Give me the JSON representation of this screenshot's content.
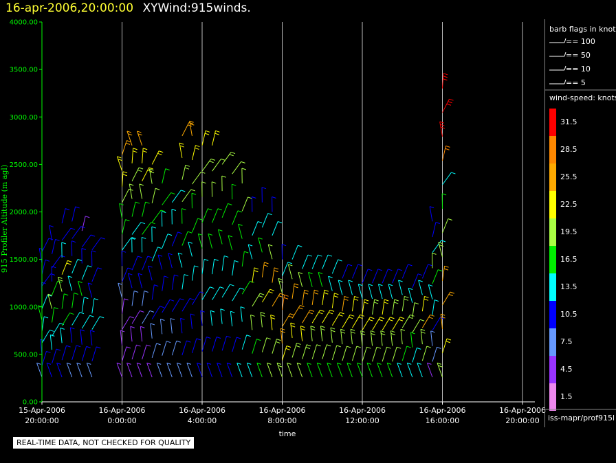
{
  "title": {
    "timestamp": "16-apr-2006,20:00:00",
    "dataset": "XYWind:915winds."
  },
  "quality_notice": "REAL-TIME DATA, NOT CHECKED FOR QUALITY",
  "chart_data": {
    "type": "scatter",
    "plot_kind": "wind-barb time-height plot",
    "ylabel": "915 Profiler Altitude (m agl)",
    "xlabel": "time",
    "ylim": [
      0,
      4000
    ],
    "y_ticks": [
      "4000.00",
      "3500.00",
      "3000.00",
      "2500.00",
      "2000.00",
      "1500.00",
      "1000.00",
      "500.00",
      "0.00"
    ],
    "x_ticks": [
      {
        "date": "15-Apr-2006",
        "time": "20:00:00"
      },
      {
        "date": "16-Apr-2006",
        "time": "0:00:00"
      },
      {
        "date": "16-Apr-2006",
        "time": "4:00:00"
      },
      {
        "date": "16-Apr-2006",
        "time": "8:00:00"
      },
      {
        "date": "16-Apr-2006",
        "time": "12:00:00"
      },
      {
        "date": "16-Apr-2006",
        "time": "16:00:00"
      },
      {
        "date": "16-Apr-2006",
        "time": "20:00:00"
      }
    ],
    "grid": "vertical lines at each time tick",
    "barb_legend": {
      "title": "barb flags in knots",
      "items": [
        "== 100",
        "== 50",
        "== 10",
        "== 5"
      ]
    },
    "color_scale": {
      "title": "wind-speed: knots",
      "levels": [
        {
          "label": "31.5",
          "color": "#ff0000"
        },
        {
          "label": "28.5",
          "color": "#ff8800"
        },
        {
          "label": "25.5",
          "color": "#ffaa00"
        },
        {
          "label": "22.5",
          "color": "#ffff00"
        },
        {
          "label": "19.5",
          "color": "#aaff44"
        },
        {
          "label": "16.5",
          "color": "#00ee00"
        },
        {
          "label": "13.5",
          "color": "#00ffff"
        },
        {
          "label": "10.5",
          "color": "#0000ff"
        },
        {
          "label": "7.5",
          "color": "#6699ff"
        },
        {
          "label": "4.5",
          "color": "#9933ff"
        },
        {
          "label": "1.5",
          "color": "#ee88ee"
        }
      ]
    },
    "source": "iss-mapr/prof915l",
    "profiles": [
      {
        "hour": 0.0,
        "top": 1580,
        "s": [
          8,
          9,
          11,
          12,
          14,
          15,
          12,
          11,
          10,
          10,
          10,
          9
        ]
      },
      {
        "hour": 0.5,
        "top": 1700,
        "s": [
          9,
          10,
          12,
          14,
          16,
          18,
          15,
          11,
          10,
          10,
          10
        ]
      },
      {
        "hour": 1.0,
        "top": 1880,
        "s": [
          10,
          11,
          13,
          15,
          17,
          20,
          23,
          12,
          11,
          10
        ]
      },
      {
        "hour": 1.5,
        "top": 1900,
        "s": [
          8,
          9,
          11,
          13,
          15,
          14,
          12,
          10,
          10,
          10
        ]
      },
      {
        "hour": 2.0,
        "top": 1800,
        "s": [
          8,
          9,
          10,
          12,
          14,
          15,
          12,
          11,
          10,
          5
        ]
      },
      {
        "hour": 2.5,
        "top": 1600,
        "s": [
          8,
          9,
          10,
          12,
          14,
          11,
          10,
          10,
          10
        ]
      },
      {
        "hour": 4.0,
        "top": 2600,
        "s": [
          4,
          5,
          4,
          3,
          5,
          8,
          10,
          11,
          13,
          15,
          17,
          19,
          21,
          23,
          25
        ]
      },
      {
        "hour": 4.5,
        "top": 2700,
        "s": [
          4,
          4,
          3,
          4,
          6,
          9,
          10,
          12,
          14,
          16,
          18,
          20,
          22,
          25
        ]
      },
      {
        "hour": 5.0,
        "top": 2700,
        "s": [
          3,
          4,
          5,
          6,
          8,
          10,
          11,
          13,
          15,
          17,
          19,
          21,
          23,
          26
        ]
      },
      {
        "hour": 5.5,
        "top": 2500,
        "s": [
          5,
          6,
          7,
          9,
          10,
          11,
          12,
          14,
          16,
          18,
          20,
          22
        ]
      },
      {
        "hour": 6.0,
        "top": 2300,
        "s": [
          6,
          7,
          8,
          9,
          10,
          11,
          12,
          13,
          15,
          17
        ]
      },
      {
        "hour": 6.5,
        "top": 2100,
        "s": [
          6,
          7,
          8,
          9,
          10,
          10,
          11,
          12,
          14
        ]
      },
      {
        "hour": 7.0,
        "top": 2800,
        "s": [
          8,
          9,
          10,
          11,
          12,
          13,
          15,
          16,
          18,
          20,
          22,
          24
        ]
      },
      {
        "hour": 7.5,
        "top": 2800,
        "s": [
          8,
          9,
          10,
          11,
          12,
          14,
          15,
          17,
          19,
          21,
          24
        ]
      },
      {
        "hour": 8.0,
        "top": 2700,
        "s": [
          9,
          10,
          11,
          12,
          13,
          15,
          16,
          18,
          20,
          22
        ]
      },
      {
        "hour": 8.5,
        "top": 2700,
        "s": [
          10,
          11,
          12,
          13,
          14,
          15,
          16,
          18,
          19,
          21
        ]
      },
      {
        "hour": 9.0,
        "top": 2500,
        "s": [
          10,
          11,
          12,
          13,
          14,
          15,
          17,
          18,
          20
        ]
      },
      {
        "hour": 9.5,
        "top": 2400,
        "s": [
          10,
          11,
          12,
          13,
          14,
          15,
          16,
          17,
          19
        ]
      },
      {
        "hour": 10.0,
        "top": 2300,
        "s": [
          12,
          13,
          14,
          15,
          16,
          17,
          18,
          19
        ]
      },
      {
        "hour": 10.5,
        "top": 2000,
        "s": [
          14,
          16,
          18,
          20,
          22,
          14,
          12,
          10
        ]
      },
      {
        "hour": 11.0,
        "top": 2100,
        "s": [
          16,
          18,
          20,
          22,
          24,
          16,
          12,
          10
        ]
      },
      {
        "hour": 11.5,
        "top": 2000,
        "s": [
          18,
          20,
          22,
          24,
          26,
          18,
          14,
          10
        ]
      },
      {
        "hour": 12.0,
        "top": 1500,
        "s": [
          20,
          22,
          24,
          26,
          28,
          20,
          14,
          10
        ]
      },
      {
        "hour": 12.5,
        "top": 1500,
        "s": [
          18,
          20,
          22,
          24,
          26,
          18,
          12
        ]
      },
      {
        "hour": 13.0,
        "top": 1400,
        "s": [
          18,
          20,
          22,
          24,
          25,
          18,
          12
        ]
      },
      {
        "hour": 13.5,
        "top": 1400,
        "s": [
          16,
          18,
          20,
          22,
          24,
          16,
          12
        ]
      },
      {
        "hour": 14.0,
        "top": 1400,
        "s": [
          16,
          18,
          20,
          22,
          23,
          16,
          12
        ]
      },
      {
        "hour": 14.5,
        "top": 1350,
        "s": [
          16,
          18,
          20,
          22,
          22,
          14,
          12
        ]
      },
      {
        "hour": 15.0,
        "top": 1300,
        "s": [
          16,
          18,
          20,
          22,
          24,
          14,
          10
        ]
      },
      {
        "hour": 15.5,
        "top": 1300,
        "s": [
          16,
          18,
          20,
          22,
          22,
          14,
          10
        ]
      },
      {
        "hour": 16.0,
        "top": 1250,
        "s": [
          16,
          18,
          20,
          22,
          22,
          14,
          10
        ]
      },
      {
        "hour": 16.5,
        "top": 1250,
        "s": [
          16,
          18,
          20,
          22,
          20,
          14,
          10
        ]
      },
      {
        "hour": 17.0,
        "top": 1250,
        "s": [
          16,
          18,
          20,
          22,
          22,
          14,
          10
        ]
      },
      {
        "hour": 17.5,
        "top": 1250,
        "s": [
          16,
          18,
          20,
          22,
          20,
          14,
          10
        ]
      },
      {
        "hour": 18.0,
        "top": 1300,
        "s": [
          14,
          16,
          18,
          20,
          20,
          14,
          10
        ]
      },
      {
        "hour": 18.5,
        "top": 1200,
        "s": [
          12,
          14,
          16,
          18,
          18,
          14,
          10
        ]
      },
      {
        "hour": 19.0,
        "top": 1300,
        "s": [
          14,
          18,
          20,
          24,
          22,
          12,
          10
        ]
      },
      {
        "hour": 19.5,
        "top": 1900,
        "s": [
          4,
          6,
          8,
          10,
          12,
          14,
          16,
          18,
          12,
          10,
          10
        ]
      },
      {
        "hour": 20.0,
        "top": 3300,
        "s": [
          20,
          22,
          24,
          26,
          24,
          20,
          18,
          16,
          14,
          28,
          30,
          31,
          32
        ]
      }
    ]
  }
}
